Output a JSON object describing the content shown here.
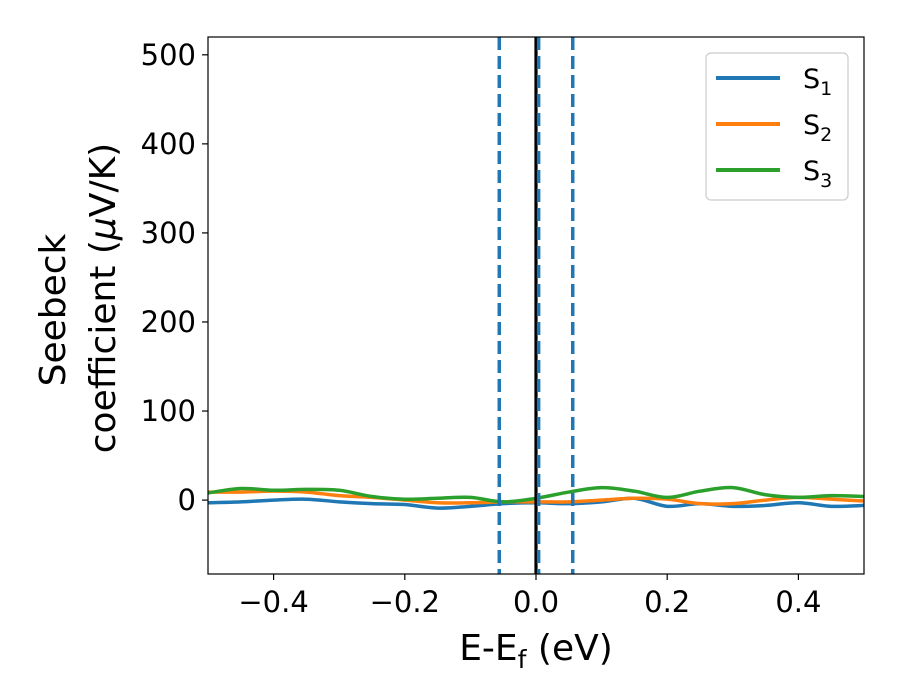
{
  "chart_data": {
    "type": "line",
    "title": "",
    "xlabel": {
      "main": "E-E",
      "sub": "f",
      "tail": " (eV)"
    },
    "ylabel": {
      "line1": "Seebeck",
      "line2_pre": "coefficient  (",
      "line2_mu": "μ",
      "line2_post": "V/K)"
    },
    "xlim": [
      -0.5,
      0.5
    ],
    "ylim": [
      -83,
      520
    ],
    "xticks": [
      -0.4,
      -0.2,
      0.0,
      0.2,
      0.4
    ],
    "xtick_labels": [
      "−0.4",
      "−0.2",
      "0.0",
      "0.2",
      "0.4"
    ],
    "yticks": [
      0,
      100,
      200,
      300,
      400,
      500
    ],
    "ytick_labels": [
      "0",
      "100",
      "200",
      "300",
      "400",
      "500"
    ],
    "grid": false,
    "legend_position": "top-right",
    "series": [
      {
        "name": "S",
        "name_sub": "1",
        "color": "#1f77b4",
        "x": [
          -0.5,
          -0.45,
          -0.4,
          -0.35,
          -0.3,
          -0.25,
          -0.2,
          -0.15,
          -0.1,
          -0.05,
          0.0,
          0.05,
          0.1,
          0.15,
          0.2,
          0.25,
          0.3,
          0.35,
          0.4,
          0.45,
          0.5
        ],
        "y": [
          -3,
          -2,
          0,
          1,
          -2,
          -4,
          -5,
          -9,
          -7,
          -4,
          -3,
          -4,
          -2,
          2,
          -7,
          -4,
          -7,
          -6,
          -3,
          -7,
          -6
        ]
      },
      {
        "name": "S",
        "name_sub": "2",
        "color": "#ff7f0e",
        "x": [
          -0.5,
          -0.45,
          -0.4,
          -0.35,
          -0.3,
          -0.25,
          -0.2,
          -0.15,
          -0.1,
          -0.05,
          0.0,
          0.05,
          0.1,
          0.15,
          0.2,
          0.25,
          0.3,
          0.35,
          0.4,
          0.45,
          0.5
        ],
        "y": [
          9,
          9,
          10,
          9,
          5,
          3,
          0,
          -3,
          -3,
          -2,
          -2,
          -2,
          0,
          2,
          1,
          -4,
          -4,
          0,
          3,
          1,
          -1
        ]
      },
      {
        "name": "S",
        "name_sub": "3",
        "color": "#2ca02c",
        "x": [
          -0.5,
          -0.45,
          -0.4,
          -0.35,
          -0.3,
          -0.25,
          -0.2,
          -0.15,
          -0.1,
          -0.05,
          0.0,
          0.05,
          0.1,
          0.15,
          0.2,
          0.25,
          0.3,
          0.35,
          0.4,
          0.45,
          0.5
        ],
        "y": [
          8,
          13,
          11,
          12,
          11,
          4,
          1,
          2,
          3,
          -2,
          2,
          9,
          14,
          10,
          3,
          10,
          14,
          6,
          3,
          5,
          4
        ]
      }
    ],
    "vlines": [
      {
        "x": -0.056,
        "style": "dashed",
        "color": "#1f77b4"
      },
      {
        "x": 0.056,
        "style": "dashed",
        "color": "#1f77b4"
      },
      {
        "x": 0.0,
        "style": "solid",
        "color": "#000000"
      },
      {
        "x": 0.004,
        "style": "dashed",
        "color": "#1f77b4"
      }
    ]
  }
}
